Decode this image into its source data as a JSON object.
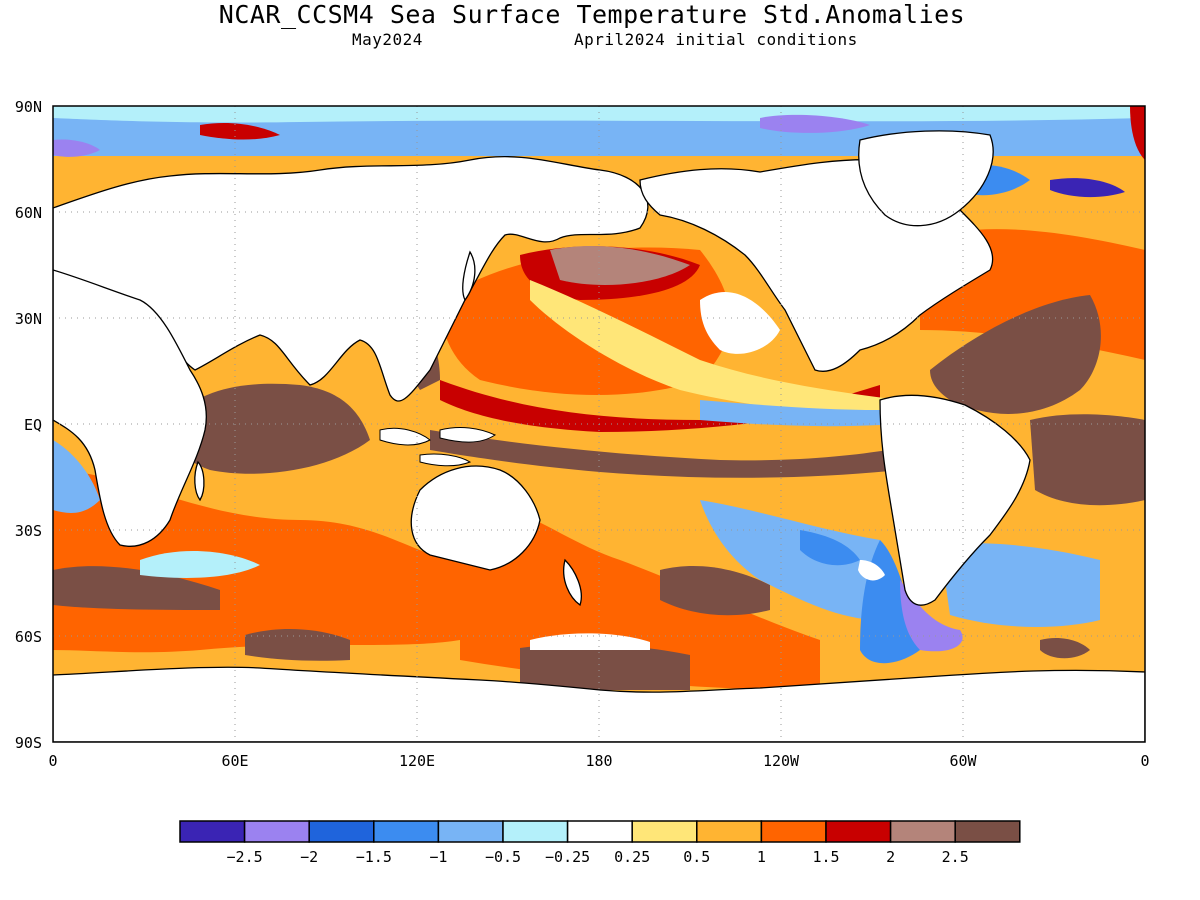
{
  "title": "NCAR_CCSM4 Sea Surface Temperature Std.Anomalies",
  "subtitle_left": "May2024",
  "subtitle_right": "April2024 initial conditions",
  "axes": {
    "lat_labels": [
      "90N",
      "60N",
      "30N",
      "EQ",
      "30S",
      "60S",
      "90S"
    ],
    "lon_labels": [
      "0",
      "60E",
      "120E",
      "180",
      "120W",
      "60W",
      "0"
    ]
  },
  "colorbar": {
    "colors": [
      "#3a24b4",
      "#9b82f0",
      "#1f64dc",
      "#3c8cf0",
      "#78b4f5",
      "#b4f0fa",
      "#ffffff",
      "#ffe678",
      "#ffb432",
      "#ff6400",
      "#c80000",
      "#b4847a",
      "#7a4f45"
    ],
    "labels": [
      "−2.5",
      "−2",
      "−1.5",
      "−1",
      "−0.5",
      "−0.25",
      "0.25",
      "0.5",
      "1",
      "1.5",
      "2",
      "2.5"
    ]
  },
  "legend_values": [
    -2.5,
    -2,
    -1.5,
    -1,
    -0.5,
    -0.25,
    0.25,
    0.5,
    1,
    1.5,
    2,
    2.5
  ],
  "land_color": "#ffffff",
  "grid": "dotted"
}
